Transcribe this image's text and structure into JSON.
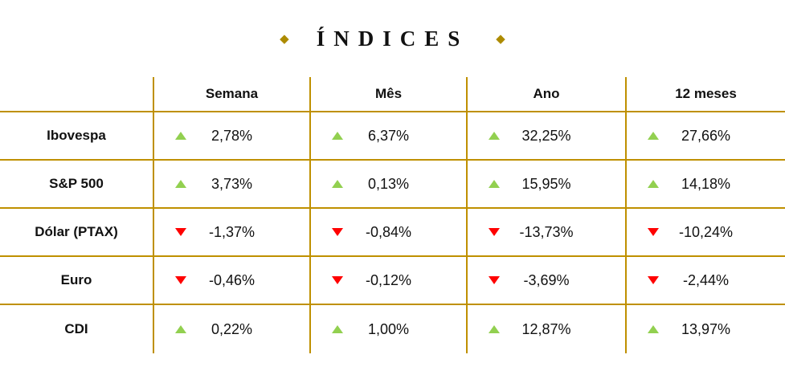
{
  "title": {
    "text": "ÍNDICES"
  },
  "icons": {
    "diamond": "◆"
  },
  "colors": {
    "gold_line": "#BF9000",
    "diamond_gold": "#AD8B00",
    "up_green": "#92D050",
    "down_red": "#FF0000"
  },
  "table": {
    "columns": [
      "Semana",
      "Mês",
      "Ano",
      "12 meses"
    ],
    "rows": [
      {
        "label": "Ibovespa",
        "cells": [
          {
            "direction": "up",
            "value": "2,78%"
          },
          {
            "direction": "up",
            "value": "6,37%"
          },
          {
            "direction": "up",
            "value": "32,25%"
          },
          {
            "direction": "up",
            "value": "27,66%"
          }
        ]
      },
      {
        "label": "S&P 500",
        "cells": [
          {
            "direction": "up",
            "value": "3,73%"
          },
          {
            "direction": "up",
            "value": "0,13%"
          },
          {
            "direction": "up",
            "value": "15,95%"
          },
          {
            "direction": "up",
            "value": "14,18%"
          }
        ]
      },
      {
        "label": "Dólar (PTAX)",
        "cells": [
          {
            "direction": "down",
            "value": "-1,37%"
          },
          {
            "direction": "down",
            "value": "-0,84%"
          },
          {
            "direction": "down",
            "value": "-13,73%"
          },
          {
            "direction": "down",
            "value": "-10,24%"
          }
        ]
      },
      {
        "label": "Euro",
        "cells": [
          {
            "direction": "down",
            "value": "-0,46%"
          },
          {
            "direction": "down",
            "value": "-0,12%"
          },
          {
            "direction": "down",
            "value": "-3,69%"
          },
          {
            "direction": "down",
            "value": "-2,44%"
          }
        ]
      },
      {
        "label": "CDI",
        "cells": [
          {
            "direction": "up",
            "value": "0,22%"
          },
          {
            "direction": "up",
            "value": "1,00%"
          },
          {
            "direction": "up",
            "value": "12,87%"
          },
          {
            "direction": "up",
            "value": "13,97%"
          }
        ]
      }
    ]
  },
  "chart_data": {
    "type": "table",
    "title": "ÍNDICES",
    "columns": [
      "Semana",
      "Mês",
      "Ano",
      "12 meses"
    ],
    "rows": [
      {
        "label": "Ibovespa",
        "values_pct": [
          2.78,
          6.37,
          32.25,
          27.66
        ]
      },
      {
        "label": "S&P 500",
        "values_pct": [
          3.73,
          0.13,
          15.95,
          14.18
        ]
      },
      {
        "label": "Dólar (PTAX)",
        "values_pct": [
          -1.37,
          -0.84,
          -13.73,
          -10.24
        ]
      },
      {
        "label": "Euro",
        "values_pct": [
          -0.46,
          -0.12,
          -3.69,
          -2.44
        ]
      },
      {
        "label": "CDI",
        "values_pct": [
          0.22,
          1.0,
          12.87,
          13.97
        ]
      }
    ]
  }
}
